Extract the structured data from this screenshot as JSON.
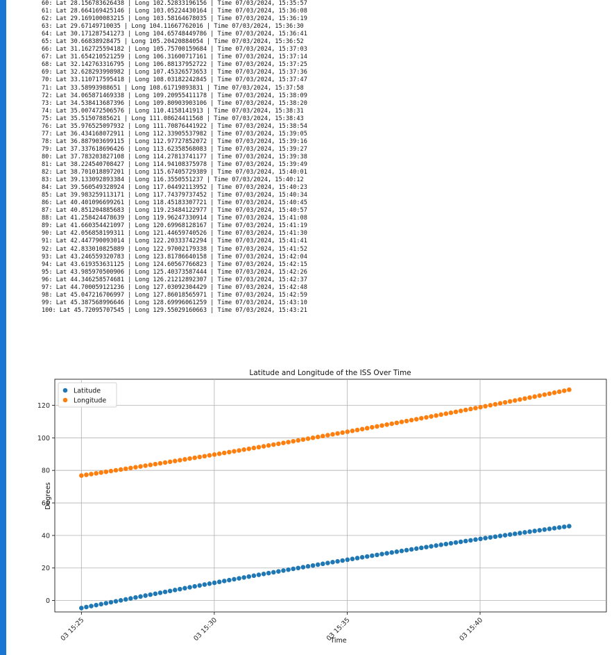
{
  "output_lines": [
    "60: Lat 28.156783626438 | Long 102.52833196156 | Time 07/03/2024, 15:35:57",
    "61: Lat 28.664169425146 | Long 103.05224430164 | Time 07/03/2024, 15:36:08",
    "62: Lat 29.169100083215 | Long 103.58164678035 | Time 07/03/2024, 15:36:19",
    "63: Lat 29.67149710035 | Long 104.11667762016 | Time 07/03/2024, 15:36:30",
    "64: Lat 30.171287541273 | Long 104.65748449786 | Time 07/03/2024, 15:36:41",
    "65: Lat 30.66838928475 | Long 105.20420884054 | Time 07/03/2024, 15:36:52",
    "66: Lat 31.162725594182 | Long 105.75700159684 | Time 07/03/2024, 15:37:03",
    "67: Lat 31.654210521259 | Long 106.31600717161 | Time 07/03/2024, 15:37:14",
    "68: Lat 32.142763316795 | Long 106.88137952722 | Time 07/03/2024, 15:37:25",
    "69: Lat 32.628293998982 | Long 107.45326573653 | Time 07/03/2024, 15:37:36",
    "70: Lat 33.110717595418 | Long 108.03182242845 | Time 07/03/2024, 15:37:47",
    "71: Lat 33.58993988651 | Long 108.61719893831 | Time 07/03/2024, 15:37:58",
    "72: Lat 34.065871469338 | Long 109.20955411178 | Time 07/03/2024, 15:38:09",
    "73: Lat 34.538413687396 | Long 109.80903903106 | Time 07/03/2024, 15:38:20",
    "74: Lat 35.007472506576 | Long 110.4158141913 | Time 07/03/2024, 15:38:31",
    "75: Lat 35.51507885621 | Long 111.08624411568 | Time 07/03/2024, 15:38:43",
    "76: Lat 35.976525097932 | Long 111.70876441922 | Time 07/03/2024, 15:38:54",
    "77: Lat 36.434168072911 | Long 112.33905537982 | Time 07/03/2024, 15:39:05",
    "78: Lat 36.887903699115 | Long 112.97727852072 | Time 07/03/2024, 15:39:16",
    "79: Lat 37.337618696426 | Long 113.62358568083 | Time 07/03/2024, 15:39:27",
    "80: Lat 37.783203827108 | Long 114.27813741177 | Time 07/03/2024, 15:39:38",
    "81: Lat 38.224540708427 | Long 114.94108375978 | Time 07/03/2024, 15:39:49",
    "82: Lat 38.701018897201 | Long 115.67405729389 | Time 07/03/2024, 15:40:01",
    "83: Lat 39.133092893384 | Long 116.3550551237 | Time 07/03/2024, 15:40:12",
    "84: Lat 39.560549328924 | Long 117.04492113952 | Time 07/03/2024, 15:40:23",
    "85: Lat 39.983259113171 | Long 117.74379737452 | Time 07/03/2024, 15:40:34",
    "86: Lat 40.401096699261 | Long 118.45183307721 | Time 07/03/2024, 15:40:45",
    "87: Lat 40.851204885683 | Long 119.23484122977 | Time 07/03/2024, 15:40:57",
    "88: Lat 41.258424478639 | Long 119.96247330914 | Time 07/03/2024, 15:41:08",
    "89: Lat 41.660354421097 | Long 120.69968128167 | Time 07/03/2024, 15:41:19",
    "90: Lat 42.056858199311 | Long 121.44659740526 | Time 07/03/2024, 15:41:30",
    "91: Lat 42.447790093014 | Long 122.20333742294 | Time 07/03/2024, 15:41:41",
    "92: Lat 42.833010825889 | Long 122.97002179338 | Time 07/03/2024, 15:41:52",
    "93: Lat 43.246559320783 | Long 123.81786640158 | Time 07/03/2024, 15:42:04",
    "94: Lat 43.619353631125 | Long 124.60567766823 | Time 07/03/2024, 15:42:15",
    "95: Lat 43.985970500906 | Long 125.40373587444 | Time 07/03/2024, 15:42:26",
    "96: Lat 44.346258574681 | Long 126.21212892307 | Time 07/03/2024, 15:42:37",
    "97: Lat 44.700059121236 | Long 127.03092304429 | Time 07/03/2024, 15:42:48",
    "98: Lat 45.047216706997 | Long 127.86018565971 | Time 07/03/2024, 15:42:59",
    "99: Lat 45.387568996646 | Long 128.69996061259 | Time 07/03/2024, 15:43:10",
    "100: Lat 45.72095707545 | Long 129.55029160663 | Time 07/03/2024, 15:43:21"
  ],
  "colors": {
    "accent_bar": "#1976d2",
    "latitude": "#1f77b4",
    "longitude": "#ff7f0e",
    "grid": "#b0b0b0"
  },
  "chart_data": {
    "type": "scatter",
    "title": "Latitude and Longitude of the ISS Over Time",
    "xlabel": "Time",
    "ylabel": "Degrees",
    "x_range_minutes": [
      -1.0,
      19.75
    ],
    "ylim": [
      -7,
      136
    ],
    "x_tick_labels": [
      "03 15:25",
      "03 15:30",
      "03 15:35",
      "03 15:40"
    ],
    "x_tick_minutes": [
      0,
      5,
      10,
      15
    ],
    "y_ticks": [
      0,
      20,
      40,
      60,
      80,
      100,
      120
    ],
    "grid": true,
    "legend_position": "top-left",
    "x_start_time": "03 15:25",
    "x_end_time": "03 15:43:21",
    "series": [
      {
        "name": "Latitude",
        "color": "#1f77b4",
        "start": -4.6,
        "end": 45.72095707545,
        "curve": "concave",
        "points": 100
      },
      {
        "name": "Longitude",
        "color": "#ff7f0e",
        "start": 76.8,
        "end": 129.55029160663,
        "curve": "convex",
        "points": 100
      }
    ]
  }
}
